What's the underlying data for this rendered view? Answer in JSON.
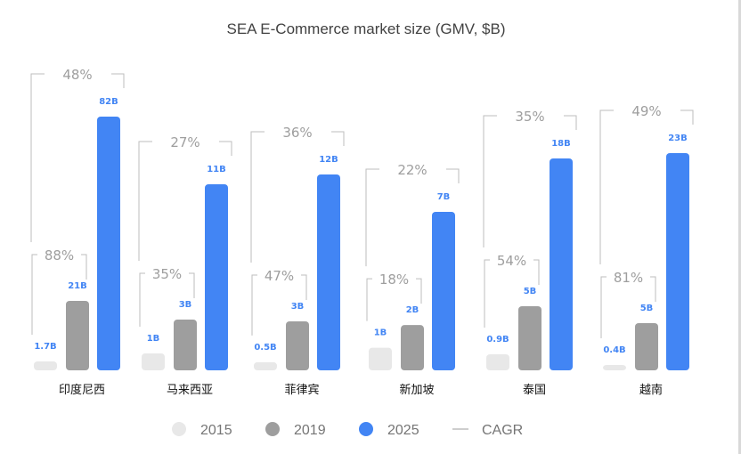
{
  "chart_data": {
    "type": "bar",
    "title": "SEA E-Commerce market size (GMV, $B)",
    "categories": [
      "印度尼西",
      "马来西亚",
      "菲律宾",
      "新加坡",
      "泰国",
      "越南"
    ],
    "series": [
      {
        "name": "2015",
        "color": "#e8e8e8",
        "values": [
          1.7,
          1.0,
          0.5,
          1.0,
          0.9,
          0.4
        ],
        "labels": [
          "1.7B",
          "1B",
          "0.5B",
          "1B",
          "0.9B",
          "0.4B"
        ]
      },
      {
        "name": "2019",
        "color": "#9e9e9e",
        "values": [
          21,
          3,
          3,
          2,
          5,
          5
        ],
        "labels": [
          "21B",
          "3B",
          "3B",
          "2B",
          "5B",
          "5B"
        ]
      },
      {
        "name": "2025",
        "color": "#4285f4",
        "values": [
          82,
          11,
          12,
          7,
          18,
          23
        ],
        "labels": [
          "82B",
          "11B",
          "12B",
          "7B",
          "18B",
          "23B"
        ]
      }
    ],
    "cagr_2015_2019": [
      "88%",
      "35%",
      "47%",
      "18%",
      "54%",
      "81%"
    ],
    "cagr_2015_2025": [
      "48%",
      "27%",
      "36%",
      "22%",
      "35%",
      "49%"
    ],
    "legend": [
      "2015",
      "2019",
      "2025",
      "CAGR"
    ],
    "legend_position": "bottom",
    "grid": false
  },
  "colors": {
    "bar_2015": "#e8e8e8",
    "bar_2019": "#9e9e9e",
    "bar_2025": "#4285f4",
    "bracket": "#bdbdbd",
    "cagr_text": "#9e9e9e",
    "title_text": "#424242"
  }
}
